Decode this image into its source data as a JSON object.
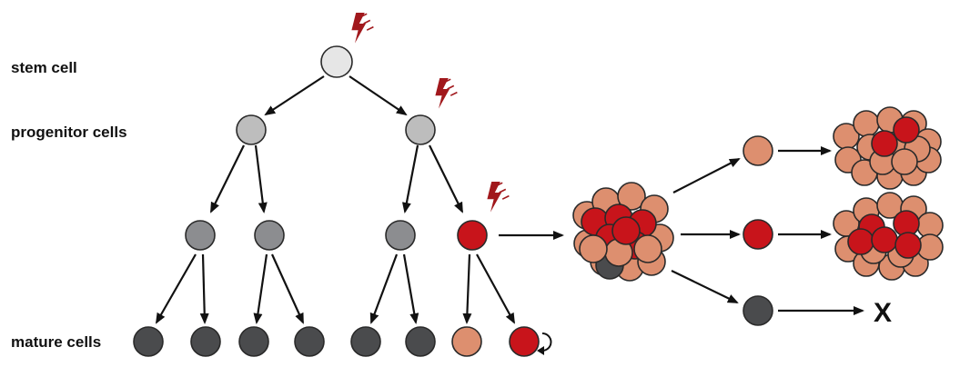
{
  "labels": {
    "stem": "stem cell",
    "progenitor": "progenitor cells",
    "mature": "mature cells",
    "dead_end": "X"
  },
  "colors": {
    "stem": "#e6e6e6",
    "progenitor": "#bdbdbd",
    "intermediate": "#8c8d90",
    "mature": "#4a4b4d",
    "peach": "#dd8f6f",
    "red": "#c8141b",
    "bolt": "#a1181c",
    "stroke": "#2a2a2a"
  },
  "icons": {
    "mutation": "lightning-bolt-icon",
    "self_renewal": "circular-arrow-icon"
  }
}
